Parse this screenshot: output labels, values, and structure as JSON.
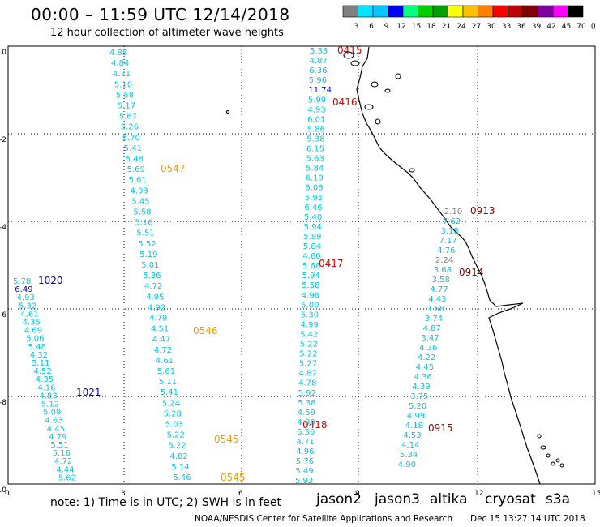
{
  "header": {
    "title": "00:00 – 11:59 UTC 12/14/2018",
    "subtitle": "12 hour collection of altimeter wave heights"
  },
  "color_scale": {
    "labels": [
      "3",
      "6",
      "9",
      "12",
      "15",
      "18",
      "21",
      "24",
      "27",
      "30",
      "33",
      "36",
      "39",
      "42",
      "45",
      "70",
      "(ft)"
    ],
    "colors": [
      "#7f7f7f",
      "#00e5ff",
      "#00c8ff",
      "#0000ff",
      "#00ff80",
      "#00d000",
      "#00a000",
      "#ffff00",
      "#ffc000",
      "#ff8000",
      "#ff0000",
      "#c00000",
      "#800000",
      "#8000a0",
      "#ff00ff",
      "#000000"
    ]
  },
  "axes": {
    "x_ticks": [
      "0",
      "3",
      "6",
      "9",
      "12",
      "15"
    ],
    "y_ticks": [
      "0",
      "-2",
      "-4",
      "-6",
      "-8",
      "-10"
    ]
  },
  "tracks": [
    {
      "values": [
        "4.88",
        "4.84",
        "4.71",
        "5.10",
        "5.58",
        "5.17",
        "5.67",
        "5.26",
        "5.70",
        "5.41",
        "5.48",
        "5.69",
        "5.61",
        "4.93",
        "5.45",
        "5.58",
        "5.16",
        "5.51",
        "5.52",
        "5.19",
        "5.01",
        "5.36",
        "4.72",
        "4.95",
        "4.92",
        "4.79",
        "4.51",
        "4.47",
        "4.72",
        "4.61",
        "5.61",
        "5.11",
        "5.41",
        "5.24",
        "5.28",
        "5.03",
        "5.22",
        "5.22",
        "4.82",
        "5.14",
        "5.46"
      ]
    },
    {
      "values": [
        "5.33",
        "4.87",
        "6.36",
        "5.96",
        "11.74",
        "5.99",
        "4.93",
        "6.01",
        "5.86",
        "5.38",
        "6.15",
        "5.63",
        "5.84",
        "6.19",
        "6.08",
        "5.95",
        "6.46",
        "5.40",
        "5.94",
        "5.89",
        "5.84",
        "4.60",
        "5.68",
        "5.94",
        "5.58",
        "4.98",
        "5.00",
        "5.30",
        "4.99",
        "5.42",
        "5.22",
        "5.22",
        "5.27",
        "4.87",
        "4.78",
        "5.92",
        "5.38",
        "4.59",
        "4.90",
        "6.36",
        "4.71",
        "4.96",
        "5.76",
        "5.49",
        "5.93"
      ]
    },
    {
      "values": [
        "5.78",
        "6.49",
        "4.93",
        "5.32",
        "4.61",
        "4.35",
        "4.69",
        "5.06",
        "5.48",
        "4.32",
        "5.11",
        "4.52",
        "4.35",
        "4.16",
        "4.83",
        "5.12",
        "5.09",
        "4.63",
        "4.45",
        "4.79",
        "5.51",
        "5.16",
        "4.72",
        "4.44",
        "5.62"
      ]
    },
    {
      "values": [
        "2.10",
        "7.62",
        "3.18",
        "7.17",
        "4.76",
        "2.24",
        "3.68",
        "3.58",
        "4.77",
        "4.43",
        "3.68",
        "3.74",
        "4.87",
        "3.47",
        "4.36",
        "4.22",
        "4.45",
        "4.36",
        "4.39",
        "3.75",
        "5.20",
        "4.99",
        "4.18",
        "4.53",
        "4.14",
        "5.34",
        "4.90"
      ]
    }
  ],
  "time_labels": [
    "0415",
    "0416",
    "0417",
    "0418",
    "0547",
    "0546",
    "0545",
    "0545",
    "1020",
    "1021",
    "0913",
    "0914",
    "0915"
  ],
  "footer": {
    "note": "note:  1) Time is in UTC; 2) SWH is in feet",
    "satellites": [
      {
        "name": "jason2",
        "color": "#0000c8"
      },
      {
        "name": "jason3",
        "color": "#00a000"
      },
      {
        "name": "altika",
        "color": "#ff9900"
      },
      {
        "name": "cryosat",
        "color": "#e00000"
      },
      {
        "name": "s3a",
        "color": "#8b0000"
      }
    ],
    "credit": "NOAA/NESDIS Center for Satellite Applications and Research",
    "timestamp": "Dec 15 13:27:14 UTC 2018"
  }
}
